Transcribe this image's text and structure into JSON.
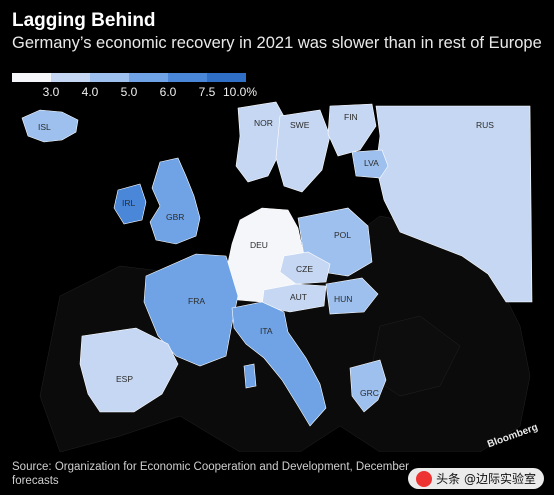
{
  "header": {
    "title": "Lagging Behind",
    "subtitle": "Germany’s economic recovery in 2021 was slower than in rest of Europe"
  },
  "legend": {
    "colors": [
      "#f4f6fa",
      "#c5d7f2",
      "#9dc0ee",
      "#6fa3e6",
      "#4a87d8",
      "#2f6fc6"
    ],
    "ticks": [
      "3.0",
      "4.0",
      "5.0",
      "6.0",
      "7.5",
      "10.0%"
    ]
  },
  "map": {
    "countries": [
      {
        "code": "ISL",
        "label": "ISL",
        "color": "#9dc0ee"
      },
      {
        "code": "IRL",
        "label": "IRL",
        "color": "#4a87d8"
      },
      {
        "code": "GBR",
        "label": "GBR",
        "color": "#6fa3e6"
      },
      {
        "code": "NOR",
        "label": "NOR",
        "color": "#c5d7f2"
      },
      {
        "code": "SWE",
        "label": "SWE",
        "color": "#c5d7f2"
      },
      {
        "code": "FIN",
        "label": "FIN",
        "color": "#c5d7f2"
      },
      {
        "code": "RUS",
        "label": "RUS",
        "color": "#c5d7f2"
      },
      {
        "code": "LVA",
        "label": "LVA",
        "color": "#9dc0ee"
      },
      {
        "code": "DEU",
        "label": "DEU",
        "color": "#f4f6fa"
      },
      {
        "code": "POL",
        "label": "POL",
        "color": "#9dc0ee"
      },
      {
        "code": "CZE",
        "label": "CZE",
        "color": "#c5d7f2"
      },
      {
        "code": "AUT",
        "label": "AUT",
        "color": "#c5d7f2"
      },
      {
        "code": "HUN",
        "label": "HUN",
        "color": "#9dc0ee"
      },
      {
        "code": "FRA",
        "label": "FRA",
        "color": "#6fa3e6"
      },
      {
        "code": "ITA",
        "label": "ITA",
        "color": "#6fa3e6"
      },
      {
        "code": "ESP",
        "label": "ESP",
        "color": "#c5d7f2"
      },
      {
        "code": "GRC",
        "label": "GRC",
        "color": "#9dc0ee"
      }
    ],
    "land_color": "#0a0a0a",
    "sea_color": "#000000"
  },
  "footer": {
    "source": "Source: Organization for Economic Cooperation and Development, December forecasts",
    "brand": "Bloomberg",
    "watermark": "头条 @边际实验室"
  }
}
